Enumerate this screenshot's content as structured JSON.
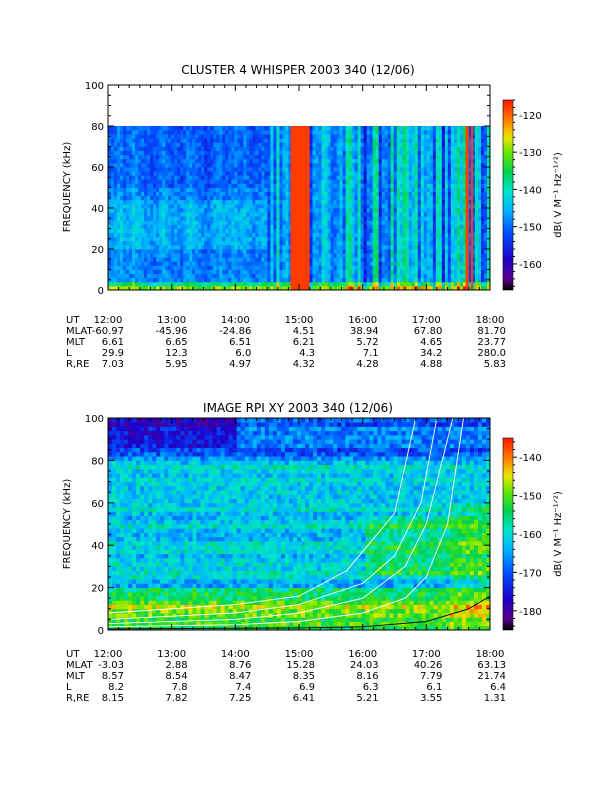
{
  "chart_data": [
    {
      "type": "heatmap",
      "title": "CLUSTER 4 WHISPER 2003 340 (12/06)",
      "ylabel": "FREQUENCY (kHz)",
      "ylim": [
        0,
        100
      ],
      "yticks": [
        "0",
        "20",
        "40",
        "60",
        "80",
        "100"
      ],
      "xlim": [
        "12:00",
        "18:00"
      ],
      "xticks": [
        "12:00",
        "13:00",
        "14:00",
        "15:00",
        "16:00",
        "17:00",
        "18:00"
      ],
      "data_freq_max": 80,
      "colorbar": {
        "label": "dB( V M⁻¹ Hz⁻¹ᐟ²)",
        "range": [
          -167,
          -116
        ],
        "ticks": [
          "-120",
          "-130",
          "-140",
          "-150",
          "-160"
        ],
        "tick_values": [
          -120,
          -130,
          -140,
          -150,
          -160
        ]
      },
      "ephemeris": [
        {
          "label": "UT",
          "values": [
            "12:00",
            "13:00",
            "14:00",
            "15:00",
            "16:00",
            "17:00",
            "18:00"
          ]
        },
        {
          "label": "MLAT",
          "values": [
            "-60.97",
            "-45.96",
            "-24.86",
            "4.51",
            "38.94",
            "67.80",
            "81.70"
          ]
        },
        {
          "label": "MLT",
          "values": [
            "6.61",
            "6.65",
            "6.51",
            "6.21",
            "5.72",
            "4.65",
            "23.77"
          ]
        },
        {
          "label": "L",
          "values": [
            "29.9",
            "12.3",
            "6.0",
            "4.3",
            "7.1",
            "34.2",
            "280.0"
          ]
        },
        {
          "label": "R,RE",
          "values": [
            "7.03",
            "5.95",
            "4.97",
            "4.32",
            "4.28",
            "4.88",
            "5.83"
          ]
        }
      ],
      "features": [
        {
          "kind": "intense emission band",
          "t_start": "14:52",
          "t_end": "15:10",
          "level_db": -118
        },
        {
          "kind": "intense emission band",
          "t_start": "17:37",
          "t_end": "17:40",
          "level_db": -118
        },
        {
          "kind": "intense emission band",
          "t_start": "17:42",
          "t_end": "17:44",
          "level_db": -118
        }
      ]
    },
    {
      "type": "heatmap",
      "title": "IMAGE RPI XY 2003 340 (12/06)",
      "ylabel": "FREQUENCY (kHz)",
      "ylim": [
        0,
        100
      ],
      "yticks": [
        "0",
        "20",
        "40",
        "60",
        "80",
        "100"
      ],
      "xlim": [
        "12:00",
        "18:00"
      ],
      "xticks": [
        "12:00",
        "13:00",
        "14:00",
        "15:00",
        "16:00",
        "17:00",
        "18:00"
      ],
      "colorbar": {
        "label": "dB( V M⁻¹ Hz⁻¹ᐟ²)",
        "range": [
          -185,
          -135
        ],
        "ticks": [
          "-140",
          "-150",
          "-160",
          "-170",
          "-180"
        ],
        "tick_values": [
          -140,
          -150,
          -160,
          -170,
          -180
        ]
      },
      "ephemeris": [
        {
          "label": "UT",
          "values": [
            "12:00",
            "13:00",
            "14:00",
            "15:00",
            "16:00",
            "17:00",
            "18:00"
          ]
        },
        {
          "label": "MLAT",
          "values": [
            "-3.03",
            "2.88",
            "8.76",
            "15.28",
            "24.03",
            "40.26",
            "63.13"
          ]
        },
        {
          "label": "MLT",
          "values": [
            "8.57",
            "8.54",
            "8.47",
            "8.35",
            "8.16",
            "7.79",
            "21.74"
          ]
        },
        {
          "label": "L",
          "values": [
            "8.2",
            "7.8",
            "7.4",
            "6.9",
            "6.3",
            "6.1",
            "6.4"
          ]
        },
        {
          "label": "R,RE",
          "values": [
            "8.15",
            "7.82",
            "7.25",
            "6.41",
            "5.21",
            "3.55",
            "1.31"
          ]
        }
      ],
      "overlay_curves": [
        {
          "color": "#ffffff",
          "points": [
            [
              "12:00",
              1.5
            ],
            [
              "14:00",
              2.5
            ],
            [
              "15:00",
              4
            ],
            [
              "16:00",
              8
            ],
            [
              "16:40",
              15
            ],
            [
              "17:00",
              25
            ],
            [
              "17:20",
              50
            ],
            [
              "17:35",
              100
            ]
          ]
        },
        {
          "color": "#ffffff",
          "points": [
            [
              "12:00",
              3
            ],
            [
              "14:00",
              5
            ],
            [
              "15:00",
              8
            ],
            [
              "16:00",
              15
            ],
            [
              "16:40",
              30
            ],
            [
              "17:00",
              50
            ],
            [
              "17:25",
              100
            ]
          ]
        },
        {
          "color": "#ffffff",
          "points": [
            [
              "12:00",
              5
            ],
            [
              "14:00",
              8
            ],
            [
              "15:00",
              12
            ],
            [
              "16:00",
              22
            ],
            [
              "16:30",
              35
            ],
            [
              "16:55",
              60
            ],
            [
              "17:10",
              100
            ]
          ]
        },
        {
          "color": "#ffffff",
          "points": [
            [
              "12:00",
              8
            ],
            [
              "14:00",
              12
            ],
            [
              "15:00",
              16
            ],
            [
              "15:45",
              28
            ],
            [
              "16:30",
              55
            ],
            [
              "16:50",
              100
            ]
          ]
        },
        {
          "color": "#000000",
          "points": [
            [
              "12:00",
              0.5
            ],
            [
              "15:00",
              1
            ],
            [
              "16:00",
              1.5
            ],
            [
              "17:00",
              4
            ],
            [
              "17:40",
              10
            ],
            [
              "18:00",
              16
            ]
          ]
        }
      ]
    }
  ]
}
